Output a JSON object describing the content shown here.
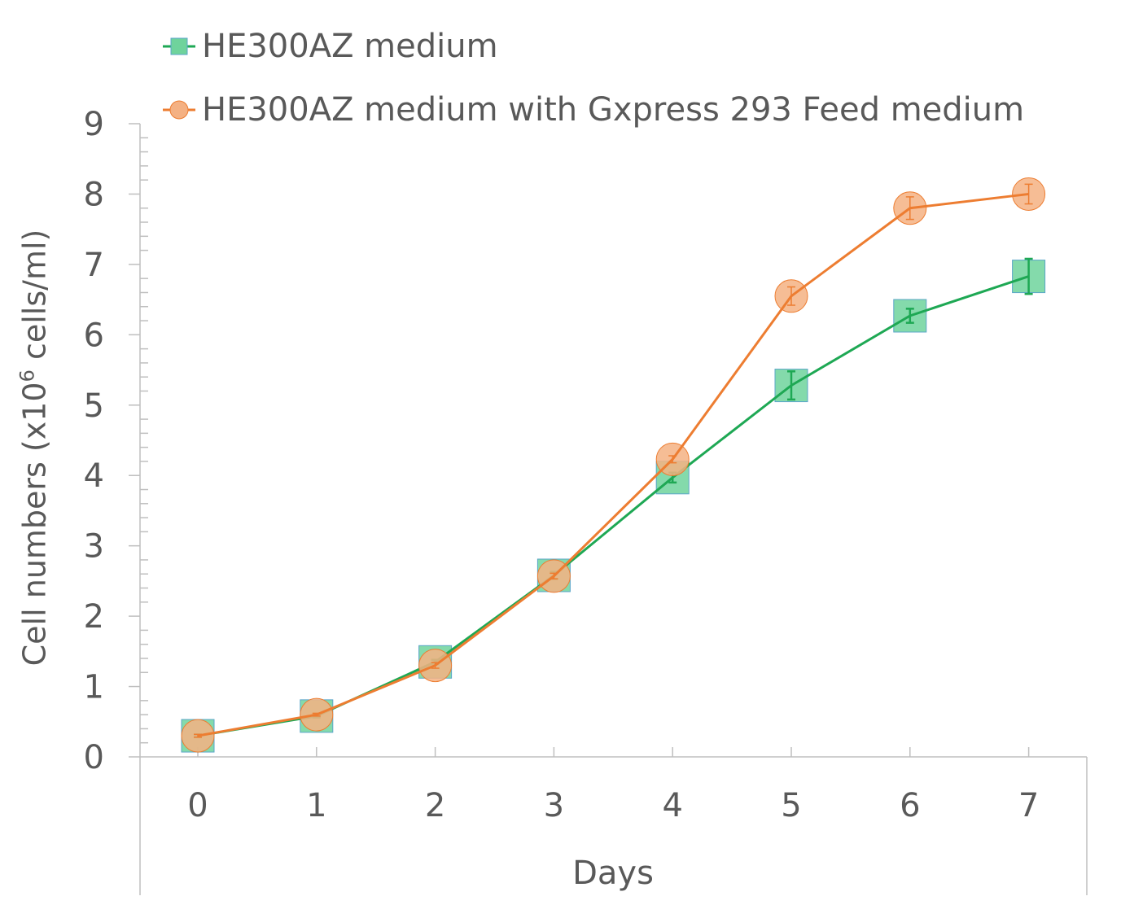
{
  "chart_data": {
    "type": "line",
    "title": "",
    "xlabel": "Days",
    "ylabel_prefix": "Cell numbers (x10",
    "ylabel_exponent": "6",
    "ylabel_suffix": " cells/ml)",
    "categories": [
      "0",
      "1",
      "2",
      "3",
      "4",
      "5",
      "6",
      "7"
    ],
    "ylim": [
      0,
      9
    ],
    "yticks": [
      "0",
      "1",
      "2",
      "3",
      "4",
      "5",
      "6",
      "7",
      "8",
      "9"
    ],
    "legend_position": "top",
    "series": [
      {
        "name": "HE300AZ medium",
        "color": "#1ea854",
        "marker_fill": "#6fd39c",
        "marker_edge": "#5aa6c8",
        "marker": "square",
        "values": [
          0.3,
          0.58,
          1.35,
          2.58,
          3.97,
          5.28,
          6.27,
          6.83
        ],
        "errors": [
          0.02,
          0.02,
          0.03,
          0.05,
          0.07,
          0.2,
          0.1,
          0.25
        ]
      },
      {
        "name": "HE300AZ medium with Gxpress 293 Feed medium",
        "color": "#ed7d31",
        "marker_fill": "#f4b183",
        "marker_edge": "#ed7d31",
        "marker": "circle",
        "values": [
          0.3,
          0.6,
          1.3,
          2.57,
          4.23,
          6.55,
          7.8,
          8.0
        ],
        "errors": [
          0.02,
          0.02,
          0.04,
          0.04,
          0.05,
          0.13,
          0.16,
          0.14
        ]
      }
    ]
  }
}
